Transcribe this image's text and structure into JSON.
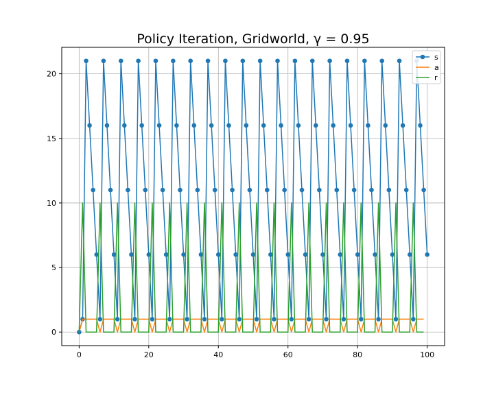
{
  "chart_data": {
    "type": "line",
    "title": "Policy Iteration, Gridworld, γ = 0.95",
    "xlabel": "",
    "ylabel": "",
    "xlim": [
      -5,
      105
    ],
    "ylim": [
      -1.05,
      22.05
    ],
    "xticks": [
      "0",
      "20",
      "40",
      "60",
      "80",
      "100"
    ],
    "yticks": [
      "0",
      "5",
      "10",
      "15",
      "20"
    ],
    "grid": true,
    "legend_position": "top-right",
    "series": [
      {
        "name": "s",
        "color": "#1f77b4",
        "marker": "circle",
        "x": [
          0,
          1,
          2,
          3,
          4,
          5,
          6,
          7,
          8,
          9,
          10,
          11,
          12,
          13,
          14,
          15,
          16,
          17,
          18,
          19,
          20,
          21,
          22,
          23,
          24,
          25,
          26,
          27,
          28,
          29,
          30,
          31,
          32,
          33,
          34,
          35,
          36,
          37,
          38,
          39,
          40,
          41,
          42,
          43,
          44,
          45,
          46,
          47,
          48,
          49,
          50,
          51,
          52,
          53,
          54,
          55,
          56,
          57,
          58,
          59,
          60,
          61,
          62,
          63,
          64,
          65,
          66,
          67,
          68,
          69,
          70,
          71,
          72,
          73,
          74,
          75,
          76,
          77,
          78,
          79,
          80,
          81,
          82,
          83,
          84,
          85,
          86,
          87,
          88,
          89,
          90,
          91,
          92,
          93,
          94,
          95,
          96,
          97,
          98,
          99,
          100
        ],
        "values": [
          0,
          1,
          21,
          16,
          11,
          6,
          1,
          21,
          16,
          11,
          6,
          1,
          21,
          16,
          11,
          6,
          1,
          21,
          16,
          11,
          6,
          1,
          21,
          16,
          11,
          6,
          1,
          21,
          16,
          11,
          6,
          1,
          21,
          16,
          11,
          6,
          1,
          21,
          16,
          11,
          6,
          1,
          21,
          16,
          11,
          6,
          1,
          21,
          16,
          11,
          6,
          1,
          21,
          16,
          11,
          6,
          1,
          21,
          16,
          11,
          6,
          1,
          21,
          16,
          11,
          6,
          1,
          21,
          16,
          11,
          6,
          1,
          21,
          16,
          11,
          6,
          1,
          21,
          16,
          11,
          6,
          1,
          21,
          16,
          11,
          6,
          1,
          21,
          16,
          11,
          6,
          1,
          21,
          16,
          11,
          6,
          1,
          21,
          16,
          11,
          6
        ]
      },
      {
        "name": "a",
        "color": "#ff7f0e",
        "marker": "none",
        "x": [
          0,
          1,
          2,
          3,
          4,
          5,
          6,
          7,
          8,
          9,
          10,
          11,
          12,
          13,
          14,
          15,
          16,
          17,
          18,
          19,
          20,
          21,
          22,
          23,
          24,
          25,
          26,
          27,
          28,
          29,
          30,
          31,
          32,
          33,
          34,
          35,
          36,
          37,
          38,
          39,
          40,
          41,
          42,
          43,
          44,
          45,
          46,
          47,
          48,
          49,
          50,
          51,
          52,
          53,
          54,
          55,
          56,
          57,
          58,
          59,
          60,
          61,
          62,
          63,
          64,
          65,
          66,
          67,
          68,
          69,
          70,
          71,
          72,
          73,
          74,
          75,
          76,
          77,
          78,
          79,
          80,
          81,
          82,
          83,
          84,
          85,
          86,
          87,
          88,
          89,
          90,
          91,
          92,
          93,
          94,
          95,
          96,
          97,
          98,
          99
        ],
        "values": [
          0,
          1,
          1,
          1,
          1,
          1,
          0,
          1,
          1,
          1,
          1,
          0,
          1,
          1,
          1,
          1,
          0,
          1,
          1,
          1,
          1,
          0,
          1,
          1,
          1,
          1,
          0,
          1,
          1,
          1,
          1,
          0,
          1,
          1,
          1,
          1,
          0,
          1,
          1,
          1,
          1,
          0,
          1,
          1,
          1,
          1,
          0,
          1,
          1,
          1,
          1,
          0,
          1,
          1,
          1,
          1,
          0,
          1,
          1,
          1,
          1,
          0,
          1,
          1,
          1,
          1,
          0,
          1,
          1,
          1,
          1,
          0,
          1,
          1,
          1,
          1,
          0,
          1,
          1,
          1,
          1,
          0,
          1,
          1,
          1,
          1,
          0,
          1,
          1,
          1,
          1,
          0,
          1,
          1,
          1,
          1,
          0,
          1,
          1,
          1
        ]
      },
      {
        "name": "r",
        "color": "#2ca02c",
        "marker": "none",
        "x": [
          0,
          1,
          2,
          3,
          4,
          5,
          6,
          7,
          8,
          9,
          10,
          11,
          12,
          13,
          14,
          15,
          16,
          17,
          18,
          19,
          20,
          21,
          22,
          23,
          24,
          25,
          26,
          27,
          28,
          29,
          30,
          31,
          32,
          33,
          34,
          35,
          36,
          37,
          38,
          39,
          40,
          41,
          42,
          43,
          44,
          45,
          46,
          47,
          48,
          49,
          50,
          51,
          52,
          53,
          54,
          55,
          56,
          57,
          58,
          59,
          60,
          61,
          62,
          63,
          64,
          65,
          66,
          67,
          68,
          69,
          70,
          71,
          72,
          73,
          74,
          75,
          76,
          77,
          78,
          79,
          80,
          81,
          82,
          83,
          84,
          85,
          86,
          87,
          88,
          89,
          90,
          91,
          92,
          93,
          94,
          95,
          96,
          97,
          98,
          99
        ],
        "values": [
          0,
          10,
          0,
          0,
          0,
          0,
          10,
          0,
          0,
          0,
          0,
          10,
          0,
          0,
          0,
          0,
          10,
          0,
          0,
          0,
          0,
          10,
          0,
          0,
          0,
          0,
          10,
          0,
          0,
          0,
          0,
          10,
          0,
          0,
          0,
          0,
          10,
          0,
          0,
          0,
          0,
          10,
          0,
          0,
          0,
          0,
          10,
          0,
          0,
          0,
          0,
          10,
          0,
          0,
          0,
          0,
          10,
          0,
          0,
          0,
          0,
          10,
          0,
          0,
          0,
          0,
          10,
          0,
          0,
          0,
          0,
          10,
          0,
          0,
          0,
          0,
          10,
          0,
          0,
          0,
          0,
          10,
          0,
          0,
          0,
          0,
          10,
          0,
          0,
          0,
          0,
          10,
          0,
          0,
          0,
          0,
          10,
          0,
          0,
          0
        ]
      }
    ]
  }
}
